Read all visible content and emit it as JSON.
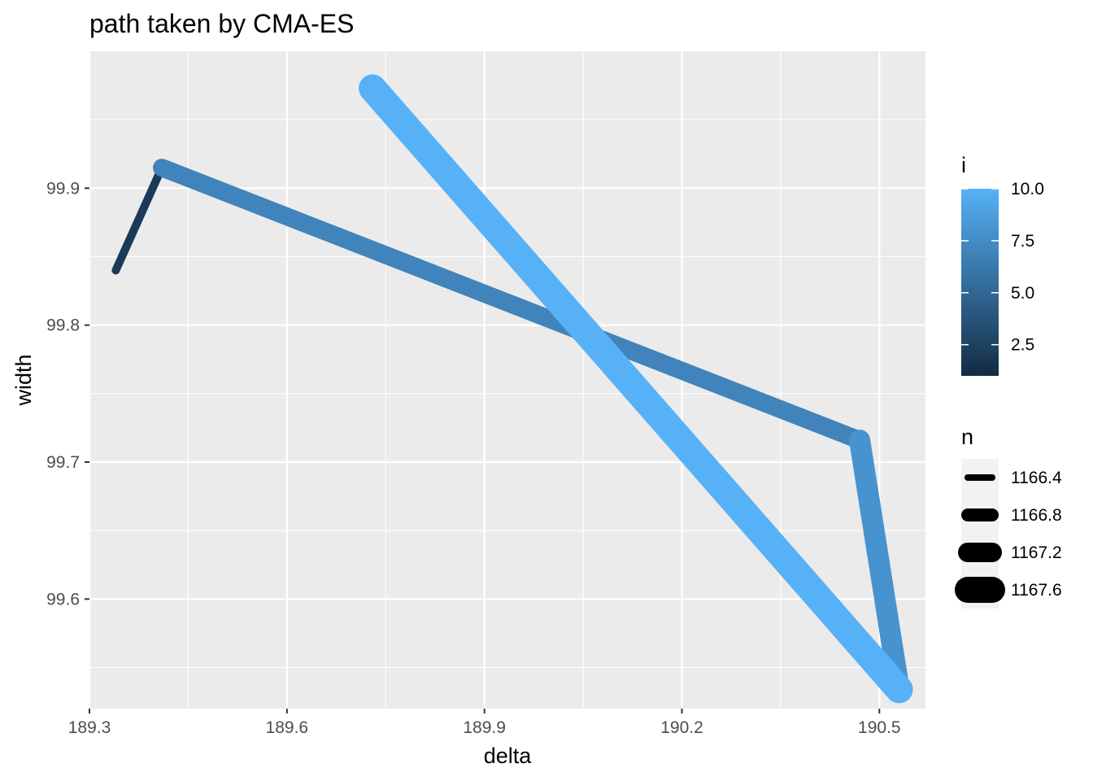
{
  "chart_data": {
    "type": "line",
    "title": "path taken by CMA-ES",
    "xlabel": "delta",
    "ylabel": "width",
    "xlim": [
      189.3,
      190.57
    ],
    "ylim": [
      99.52,
      100.0
    ],
    "x_ticks": [
      189.3,
      189.6,
      189.9,
      190.2,
      190.5
    ],
    "x_tick_labels": [
      "189.3",
      "189.6",
      "189.9",
      "190.2",
      "190.5"
    ],
    "y_ticks": [
      99.6,
      99.7,
      99.8,
      99.9
    ],
    "y_tick_labels": [
      "99.6",
      "99.7",
      "99.8",
      "99.9"
    ],
    "grid": true,
    "background": "#ebebeb",
    "points": [
      {
        "i": 1,
        "x": 189.34,
        "y": 99.84,
        "n": 1166.2
      },
      {
        "i": 2,
        "x": 189.41,
        "y": 99.915,
        "n": 1166.5
      },
      {
        "i": 7,
        "x": 190.47,
        "y": 99.716,
        "n": 1167.1
      },
      {
        "i": 8,
        "x": 190.53,
        "y": 99.534,
        "n": 1167.3
      },
      {
        "i": 10,
        "x": 189.73,
        "y": 99.973,
        "n": 1167.7
      }
    ],
    "legends": {
      "color": {
        "title": "i",
        "range": [
          1,
          10
        ],
        "breaks": [
          2.5,
          5.0,
          7.5,
          10.0
        ],
        "labels": [
          "2.5",
          "5.0",
          "7.5",
          "10.0"
        ],
        "low_color": "#132b43",
        "high_color": "#56b1f7"
      },
      "size": {
        "title": "n",
        "breaks": [
          1166.4,
          1166.8,
          1167.2,
          1167.6
        ],
        "labels": [
          "1166.4",
          "1166.8",
          "1167.2",
          "1167.6"
        ],
        "color": "#000000"
      }
    }
  }
}
